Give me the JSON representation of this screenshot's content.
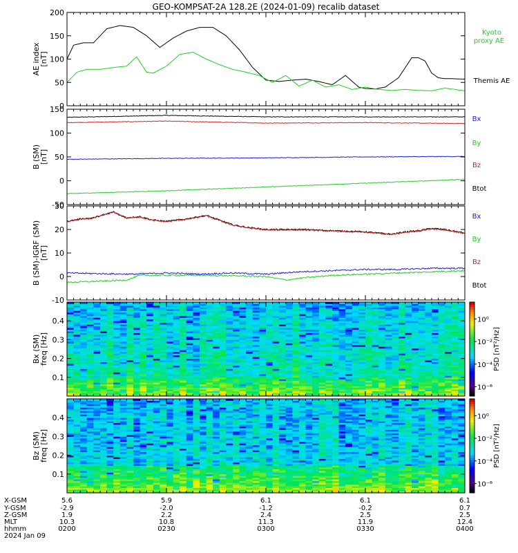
{
  "title": "GEO-KOMPSAT-2A 128.2E (2024-01-09) recalib dataset",
  "colors": {
    "black": "#000000",
    "red": "#d62020",
    "green": "#20d020",
    "blue": "#1a1adc",
    "kyoto": "#22dd22"
  },
  "panels": [
    {
      "id": "ae",
      "ylabel": [
        "AE index",
        "[nT]"
      ],
      "ylim": [
        0,
        200
      ],
      "ticks": [
        0,
        50,
        100,
        150,
        200
      ],
      "legend": [
        {
          "text": "Kyoto",
          "color": "green"
        },
        {
          "text": "proxy AE",
          "color": "green"
        },
        {
          "text": "Themis AE",
          "color": "black"
        }
      ]
    },
    {
      "id": "bsm",
      "ylabel": [
        "B (SM)",
        "[nT]"
      ],
      "ylim": [
        -50,
        150
      ],
      "ticks": [
        -50,
        0,
        50,
        100,
        150
      ],
      "legend": [
        {
          "text": "Bx",
          "color": "blue"
        },
        {
          "text": "By",
          "color": "green"
        },
        {
          "text": "Bz",
          "color": "red"
        },
        {
          "text": "Btot",
          "color": "black"
        }
      ]
    },
    {
      "id": "bigrf",
      "ylabel": [
        "B (SM)-IGRF (SM)",
        "[nT]"
      ],
      "ylim": [
        -10,
        30
      ],
      "ticks": [
        -10,
        0,
        10,
        20,
        30
      ],
      "legend": [
        {
          "text": "Bx",
          "color": "blue"
        },
        {
          "text": "By",
          "color": "green"
        },
        {
          "text": "Bz",
          "color": "red"
        },
        {
          "text": "Btot",
          "color": "black"
        }
      ]
    },
    {
      "id": "specbx",
      "ylabel": [
        "Bx (SM)",
        "freq [Hz]"
      ],
      "ylim": [
        0,
        0.5
      ],
      "ticks": [
        0.1,
        0.2,
        0.3,
        0.4
      ],
      "tick_labels": [
        "0.1",
        "0.2",
        "0.3",
        "0.4"
      ],
      "colorbar": {
        "label": "PSD [nT²/Hz]",
        "ticks": [
          "10⁰",
          "10⁻²",
          "10⁻⁴",
          "10⁻⁶"
        ]
      }
    },
    {
      "id": "specbz",
      "ylabel": [
        "Bz (SM)",
        "freq [Hz]"
      ],
      "ylim": [
        0,
        0.5
      ],
      "ticks": [
        0.1,
        0.2,
        0.3,
        0.4
      ],
      "tick_labels": [
        "0.1",
        "0.2",
        "0.3",
        "0.4"
      ],
      "colorbar": {
        "label": "PSD [nT²/Hz]",
        "ticks": [
          "10⁰",
          "10⁻²",
          "10⁻⁴",
          "10⁻⁶"
        ]
      }
    }
  ],
  "footer": {
    "row_labels": [
      "X-GSM",
      "Y-GSM",
      "Z-GSM",
      "MLT",
      "hhmm",
      "2024 Jan 09"
    ],
    "columns": [
      {
        "x": "5.6",
        "y": "-2.9",
        "z": "1.9",
        "mlt": "10.3",
        "hhmm": "0200"
      },
      {
        "x": "5.9",
        "y": "-2.0",
        "z": "2.2",
        "mlt": "10.8",
        "hhmm": "0230"
      },
      {
        "x": "6.1",
        "y": "-1.2",
        "z": "2.4",
        "mlt": "11.3",
        "hhmm": "0300"
      },
      {
        "x": "6.1",
        "y": "-0.2",
        "z": "2.5",
        "mlt": "11.9",
        "hhmm": "0330"
      },
      {
        "x": "6.1",
        "y": "0.7",
        "z": "2.5",
        "mlt": "12.4",
        "hhmm": "0400"
      }
    ]
  },
  "chart_data": [
    {
      "type": "line",
      "x_unit": "minutes after 02:00 UT",
      "xlim": [
        0,
        120
      ],
      "ylim": [
        0,
        200
      ],
      "series": [
        {
          "name": "Themis AE",
          "color": "black",
          "x": [
            0,
            2,
            5,
            8,
            12,
            16,
            20,
            24,
            28,
            32,
            36,
            40,
            44,
            48,
            52,
            56,
            60,
            64,
            68,
            72,
            76,
            80,
            84,
            88,
            90,
            93,
            96,
            100,
            104,
            106,
            108,
            110,
            112,
            114,
            116,
            120
          ],
          "values": [
            100,
            130,
            135,
            135,
            165,
            172,
            168,
            150,
            125,
            145,
            160,
            168,
            168,
            150,
            120,
            82,
            55,
            52,
            55,
            57,
            52,
            45,
            65,
            40,
            37,
            36,
            40,
            60,
            103,
            103,
            96,
            70,
            60,
            58,
            58,
            57
          ]
        },
        {
          "name": "Kyoto proxy AE",
          "color": "green",
          "x": [
            0,
            3,
            6,
            10,
            14,
            18,
            21,
            24,
            26,
            30,
            34,
            38,
            42,
            46,
            50,
            54,
            58,
            62,
            66,
            70,
            74,
            78,
            82,
            86,
            90,
            94,
            98,
            102,
            106,
            110,
            114,
            118,
            120
          ],
          "values": [
            50,
            72,
            78,
            78,
            82,
            85,
            105,
            72,
            70,
            85,
            110,
            115,
            100,
            88,
            78,
            72,
            65,
            50,
            65,
            42,
            55,
            40,
            45,
            35,
            40,
            35,
            33,
            35,
            33,
            32,
            38,
            34,
            32
          ]
        }
      ]
    },
    {
      "type": "line",
      "xlim": [
        0,
        120
      ],
      "ylim": [
        -50,
        150
      ],
      "series": [
        {
          "name": "Btot",
          "color": "black",
          "x": [
            0,
            30,
            60,
            90,
            120
          ],
          "values": [
            133,
            137,
            134,
            134,
            134
          ]
        },
        {
          "name": "Bz",
          "color": "red",
          "x": [
            0,
            30,
            60,
            90,
            120
          ],
          "values": [
            122,
            125,
            121,
            122,
            120
          ]
        },
        {
          "name": "Bx",
          "color": "blue",
          "x": [
            0,
            30,
            60,
            90,
            120
          ],
          "values": [
            45,
            47,
            48,
            50,
            51
          ]
        },
        {
          "name": "By",
          "color": "green",
          "x": [
            0,
            30,
            60,
            90,
            120
          ],
          "values": [
            -27,
            -21,
            -13,
            -5,
            3
          ]
        }
      ]
    },
    {
      "type": "line",
      "xlim": [
        0,
        120
      ],
      "ylim": [
        -10,
        30
      ],
      "series": [
        {
          "name": "Btot",
          "color": "black",
          "x": [
            0,
            4,
            8,
            14,
            18,
            22,
            26,
            30,
            36,
            42,
            46,
            50,
            54,
            60,
            66,
            72,
            80,
            90,
            94,
            98,
            102,
            106,
            110,
            114,
            118,
            120
          ],
          "values": [
            23.5,
            24.5,
            25,
            27.5,
            25,
            25.5,
            24,
            23.5,
            24.5,
            26,
            24,
            22,
            21,
            20,
            20,
            20,
            19.5,
            19,
            18.5,
            18,
            19,
            19.5,
            20.5,
            20,
            19,
            18.5
          ]
        },
        {
          "name": "Bz",
          "color": "red",
          "x": [
            0,
            4,
            8,
            14,
            18,
            22,
            26,
            30,
            36,
            42,
            46,
            50,
            54,
            60,
            66,
            72,
            80,
            90,
            94,
            98,
            102,
            106,
            110,
            114,
            118,
            120
          ],
          "values": [
            23.3,
            24.3,
            24.8,
            27.3,
            24.8,
            25.3,
            23.8,
            23.3,
            24.3,
            25.8,
            23.8,
            21.8,
            20.8,
            19.8,
            19.8,
            19.8,
            19.3,
            18.8,
            18.3,
            17.8,
            18.8,
            19.3,
            20.3,
            19.8,
            18.8,
            18.3
          ]
        },
        {
          "name": "Bx",
          "color": "blue",
          "x": [
            0,
            10,
            20,
            30,
            40,
            50,
            60,
            70,
            80,
            90,
            100,
            110,
            120
          ],
          "values": [
            1.5,
            1.2,
            1.0,
            1.5,
            1.0,
            1.5,
            1.0,
            2.0,
            2.5,
            3.0,
            3.0,
            3.5,
            3.5
          ]
        },
        {
          "name": "By",
          "color": "green",
          "x": [
            0,
            10,
            18,
            22,
            30,
            40,
            50,
            60,
            66,
            72,
            80,
            90,
            100,
            110,
            120
          ],
          "values": [
            -2.5,
            -2.0,
            -1.5,
            0.5,
            0.5,
            0.5,
            0.3,
            0,
            -1.5,
            -0.5,
            0.5,
            1.0,
            1.5,
            2.0,
            2.5
          ]
        }
      ]
    },
    {
      "type": "heatmap",
      "name": "Bx (SM) PSD",
      "xlim": [
        0,
        120
      ],
      "ylim": [
        0,
        0.5
      ],
      "values": "log10 PSD mostly 10^-4 to 10^-2 across 0-0.5 Hz, highest (10^-2 to 10^0) below 0.1 Hz"
    },
    {
      "type": "heatmap",
      "name": "Bz (SM) PSD",
      "xlim": [
        0,
        120
      ],
      "ylim": [
        0,
        0.5
      ],
      "values": "log10 PSD mostly 10^-4 to 10^-3 above 0.15 Hz, 10^-2 to 10^0 below 0.15 Hz"
    }
  ]
}
